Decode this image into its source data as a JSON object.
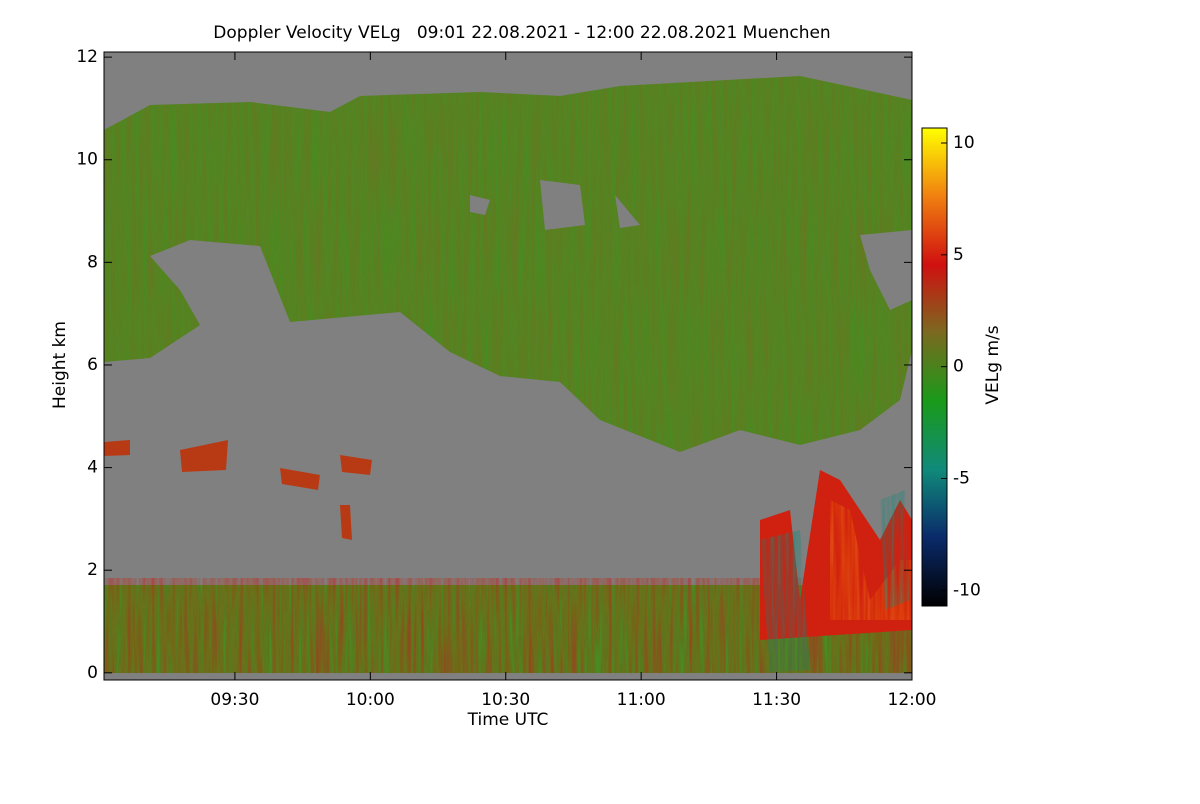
{
  "chart_data": {
    "type": "heatmap",
    "title": "Doppler Velocity VELg   09:01 22.08.2021 - 12:00 22.08.2021 Muenchen",
    "x_label": "Time UTC",
    "y_label": "Height km",
    "colorbar_label": "VELg m/s",
    "xlim": [
      541,
      720
    ],
    "xticks": [
      {
        "value": 570,
        "label": "09:30"
      },
      {
        "value": 600,
        "label": "10:00"
      },
      {
        "value": 630,
        "label": "10:30"
      },
      {
        "value": 660,
        "label": "11:00"
      },
      {
        "value": 690,
        "label": "11:30"
      },
      {
        "value": 720,
        "label": "12:00"
      }
    ],
    "ylim": [
      -0.14,
      12.1
    ],
    "yticks": [
      0,
      2,
      4,
      6,
      8,
      10,
      12
    ],
    "clim": [
      -10.7,
      10.67
    ],
    "cticks": [
      -10,
      -5,
      0,
      5,
      10
    ],
    "colorscale": [
      "#000000",
      "#0a2a6a",
      "#108a7a",
      "#1a9a1a",
      "#7a6a20",
      "#d01010",
      "#f08010",
      "#ffff00"
    ]
  }
}
